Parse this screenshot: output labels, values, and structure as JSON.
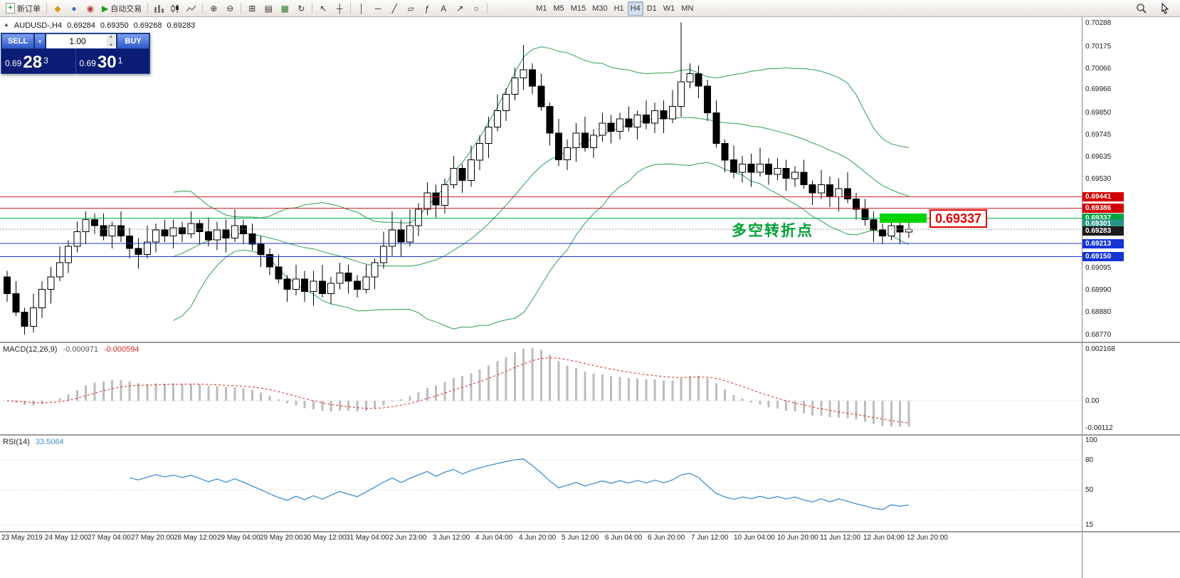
{
  "toolbar": {
    "new_order": "新订单",
    "auto_trading": "自动交易",
    "timeframes": [
      "M1",
      "M5",
      "M15",
      "M30",
      "H1",
      "H4",
      "D1",
      "W1",
      "MN"
    ],
    "active_timeframe": "H4"
  },
  "symbol_header": {
    "symbol": "AUDUSD-,H4",
    "open": "0.69284",
    "high": "0.69350",
    "low": "0.69268",
    "close": "0.69283"
  },
  "one_click": {
    "sell_label": "SELL",
    "buy_label": "BUY",
    "volume": "1.00",
    "sell_price_main": "0.69",
    "sell_price_big": "28",
    "sell_price_sup": "3",
    "buy_price_main": "0.69",
    "buy_price_big": "30",
    "buy_price_sup": "1"
  },
  "annotation": {
    "text": "多空转折点",
    "color": "#00a234"
  },
  "highlight": {
    "price": 0.69337,
    "label": "0.69337",
    "box_color": "#00d300",
    "label_color": "#e30000"
  },
  "chart_data": {
    "type": "candlestick",
    "symbol": "AUDUSD-",
    "timeframe": "H4",
    "price_axis": {
      "top": 0.70288,
      "bottom": 0.6877,
      "ticks": [
        "0.70288",
        "0.70175",
        "0.70066",
        "0.69966",
        "0.69850",
        "0.69745",
        "0.69635",
        "0.69530",
        "0.69095",
        "0.68990",
        "0.68880",
        "0.68770"
      ]
    },
    "levels": [
      {
        "price": 0.69441,
        "label": "0.69441",
        "tag_bg": "#d40000",
        "line_color": "#cc2222",
        "line_style": "solid"
      },
      {
        "price": 0.69386,
        "label": "0.69386",
        "tag_bg": "#d40000",
        "line_color": "#cc2222",
        "line_style": "solid"
      },
      {
        "price": 0.69337,
        "label": "0.69337",
        "tag_bg": "#00a33c",
        "line_color": "#00b050",
        "line_style": "solid"
      },
      {
        "price": 0.69301,
        "label": "0.69301",
        "tag_bg": "#2a9488",
        "line_color": null,
        "line_style": null,
        "tag_dy": -3
      },
      {
        "price": 0.69283,
        "label": "0.69283",
        "tag_bg": "#1c1c1c",
        "line_color": "#999999",
        "line_style": "dotted",
        "tag_dy": 2
      },
      {
        "price": 0.69213,
        "label": "0.69213",
        "tag_bg": "#1535d6",
        "line_color": "#2233cc",
        "line_style": "solid"
      },
      {
        "price": 0.6915,
        "label": "0.69150",
        "tag_bg": "#1535d6",
        "line_color": "#2233cc",
        "line_style": "solid"
      }
    ],
    "first_open": 0.6905,
    "closes": [
      0.6897,
      0.6888,
      0.6881,
      0.689,
      0.6899,
      0.6905,
      0.6912,
      0.692,
      0.6927,
      0.6933,
      0.693,
      0.6925,
      0.693,
      0.6925,
      0.6919,
      0.6916,
      0.6922,
      0.6928,
      0.6925,
      0.6929,
      0.6926,
      0.6931,
      0.6927,
      0.6923,
      0.6928,
      0.6924,
      0.693,
      0.6926,
      0.6921,
      0.6916,
      0.691,
      0.6904,
      0.6899,
      0.6904,
      0.6898,
      0.6903,
      0.6897,
      0.6902,
      0.6907,
      0.6903,
      0.6899,
      0.6905,
      0.6912,
      0.692,
      0.6928,
      0.6922,
      0.693,
      0.6938,
      0.6946,
      0.694,
      0.695,
      0.6958,
      0.6952,
      0.6962,
      0.697,
      0.6978,
      0.6986,
      0.6994,
      0.7002,
      0.7006,
      0.6998,
      0.6988,
      0.6975,
      0.6962,
      0.6968,
      0.6975,
      0.6968,
      0.6974,
      0.698,
      0.6976,
      0.6982,
      0.6978,
      0.6984,
      0.698,
      0.6986,
      0.6982,
      0.6988,
      0.7,
      0.7004,
      0.6998,
      0.6985,
      0.697,
      0.6962,
      0.6956,
      0.696,
      0.6956,
      0.696,
      0.6955,
      0.6958,
      0.6953,
      0.6956,
      0.695,
      0.6946,
      0.695,
      0.6944,
      0.6948,
      0.6943,
      0.6938,
      0.6933,
      0.6928,
      0.6925,
      0.693,
      0.6927,
      0.69283
    ],
    "wick_high_pips": [
      3,
      6,
      2,
      7,
      4,
      5,
      8,
      3,
      5,
      4,
      3,
      6,
      2,
      7,
      4,
      5,
      8,
      3,
      5,
      4,
      3,
      6,
      2,
      7,
      4,
      5,
      8,
      3,
      5,
      4,
      3,
      6,
      2,
      7,
      4,
      5,
      8,
      3,
      5,
      4,
      3,
      6,
      2,
      7,
      9,
      5,
      8,
      3,
      5,
      4,
      3,
      6,
      2,
      7,
      4,
      5,
      8,
      3,
      5,
      12,
      3,
      6,
      2,
      7,
      4,
      5,
      8,
      3,
      5,
      4,
      3,
      6,
      2,
      7,
      4,
      5,
      8,
      29,
      5,
      4,
      3,
      6,
      2,
      7,
      4,
      5,
      8,
      3,
      5,
      4,
      3,
      6,
      2,
      7,
      4,
      5,
      8,
      3,
      5,
      4,
      3,
      6,
      2,
      7
    ],
    "wick_low_pips": [
      4,
      2,
      4,
      3,
      5,
      7,
      2,
      5,
      3,
      6,
      4,
      2,
      6,
      3,
      5,
      7,
      2,
      5,
      3,
      6,
      4,
      2,
      6,
      3,
      5,
      7,
      2,
      5,
      3,
      6,
      4,
      2,
      6,
      3,
      5,
      7,
      2,
      5,
      3,
      6,
      4,
      2,
      6,
      3,
      5,
      7,
      2,
      5,
      3,
      6,
      4,
      2,
      6,
      3,
      5,
      7,
      2,
      5,
      3,
      6,
      4,
      2,
      6,
      3,
      5,
      7,
      2,
      5,
      3,
      6,
      4,
      2,
      6,
      3,
      5,
      7,
      2,
      5,
      3,
      6,
      4,
      2,
      6,
      3,
      5,
      7,
      2,
      5,
      3,
      6,
      4,
      2,
      6,
      3,
      5,
      7,
      2,
      5,
      3,
      6,
      4,
      2,
      6,
      3
    ],
    "bollinger": {
      "period": 20,
      "deviation": 2,
      "color": "#2f9e4f"
    },
    "macd": {
      "label": "MACD(12,26,9)",
      "value_main": "-0.000971",
      "value_signal": "-0.000594",
      "hist_color": "#bcbcbc",
      "signal_color": "#dd2222",
      "ticks": [
        {
          "v": 0.002168,
          "label": "0.002168"
        },
        {
          "v": 0,
          "label": "0.00"
        },
        {
          "v": -0.00112,
          "label": "-0.00112"
        }
      ]
    },
    "rsi": {
      "label": "RSI(14)",
      "value": "33.5064",
      "color": "#3f8fd2",
      "ticks": [
        {
          "v": 100,
          "label": "100"
        },
        {
          "v": 80,
          "label": "80"
        },
        {
          "v": 50,
          "label": "50"
        },
        {
          "v": 15,
          "label": "15"
        }
      ]
    },
    "dates": [
      "23 May 2019",
      "24 May 12:00",
      "27 May 04:00",
      "27 May 20:00",
      "28 May 12:00",
      "29 May 04:00",
      "29 May 20:00",
      "30 May 12:00",
      "31 May 04:00",
      "2 Jun 23:00",
      "3 Jun 12:00",
      "4 Jun 04:00",
      "4 Jun 20:00",
      "5 Jun 12:00",
      "6 Jun 04:00",
      "6 Jun 20:00",
      "7 Jun 12:00",
      "10 Jun 04:00",
      "10 Jun 20:00",
      "11 Jun 12:00",
      "12 Jun 04:00",
      "12 Jun 20:00"
    ]
  }
}
